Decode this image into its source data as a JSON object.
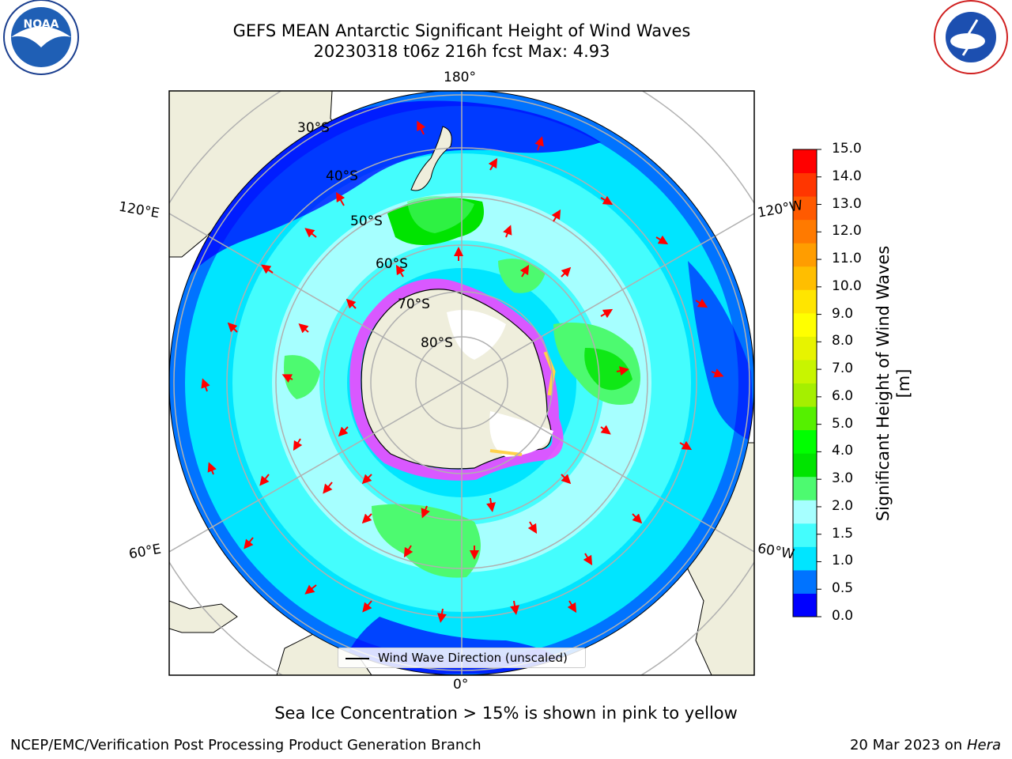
{
  "title_line1": "GEFS MEAN Antarctic Significant Height of Wind Waves",
  "title_line2": "20230318 t06z 216h fcst   Max: 4.93",
  "meridian_labels": {
    "top": "180°",
    "bottom": "0°",
    "left_upper": "120°E",
    "left_lower": "60°E",
    "right_upper": "120°W",
    "right_lower": "60°W"
  },
  "parallel_labels": [
    "30°S",
    "40°S",
    "50°S",
    "60°S",
    "70°S",
    "80°S"
  ],
  "colorbar": {
    "label": "Significant Height of Wind Waves [m]",
    "ticks": [
      "15.0",
      "14.0",
      "13.0",
      "12.0",
      "11.0",
      "10.0",
      "9.0",
      "8.0",
      "7.0",
      "6.0",
      "5.0",
      "4.0",
      "3.0",
      "2.0",
      "1.5",
      "1.0",
      "0.5",
      "0.0"
    ],
    "colors_bottom_to_top": [
      "#0000ff",
      "#0073ff",
      "#00e5ff",
      "#44fdfd",
      "#a6ffff",
      "#4dfa70",
      "#00e400",
      "#00ff00",
      "#55f000",
      "#a5ef00",
      "#c8f500",
      "#e7f300",
      "#ffff00",
      "#ffe500",
      "#ffbe00",
      "#ff9d00",
      "#ff7a00",
      "#ff5a00",
      "#ff3600",
      "#ff0000"
    ]
  },
  "legend": {
    "label": "Wind Wave Direction (unscaled)"
  },
  "note": "Sea Ice Concentration > 15% is shown in pink to yellow",
  "footer": {
    "left": "NCEP/EMC/Verification Post Processing Product Generation Branch",
    "right_date": "20 Mar 2023 on",
    "right_host": "Hera"
  },
  "map_colors": {
    "land": "#efeedc",
    "ice_sheet": "#ffffff",
    "sea_ice_pink": "#ff40ff",
    "sea_ice_yellow": "#ffd24a",
    "wave_arrow": "#ff0000",
    "grid": "#b0b0b0"
  },
  "logos": {
    "left": "NOAA",
    "right": "NATIONAL WEATHER SERVICE"
  }
}
